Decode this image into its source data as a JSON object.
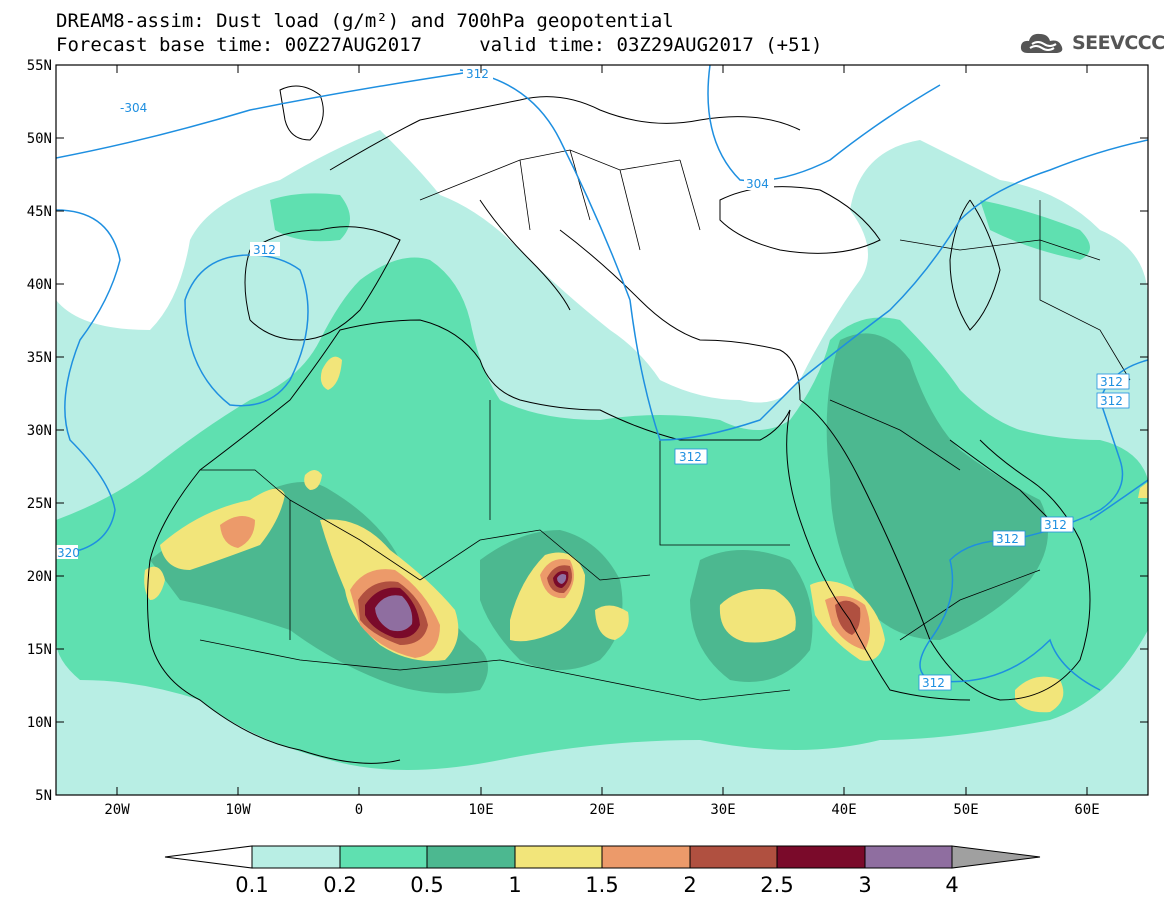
{
  "title": {
    "line1": "DREAM8-assim: Dust load (g/m²) and 700hPa geopotential",
    "line2": "Forecast base time: 00Z27AUG2017     valid time: 03Z29AUG2017 (+51)"
  },
  "logo": {
    "text": "SEEVCCC",
    "icon": "cloud-icon"
  },
  "map": {
    "lon_range": [
      -25,
      65
    ],
    "lat_range": [
      5,
      55
    ],
    "lat_ticks": [
      "55N",
      "50N",
      "45N",
      "40N",
      "35N",
      "30N",
      "25N",
      "20N",
      "15N",
      "10N",
      "5N"
    ],
    "lon_ticks": [
      "20W",
      "10W",
      "0",
      "10E",
      "20E",
      "30E",
      "40E",
      "50E",
      "60E"
    ],
    "contour_labels": [
      "304",
      "312",
      "304",
      "312",
      "312",
      "312",
      "312",
      "312",
      "312",
      "312",
      "320"
    ]
  },
  "colorbar": {
    "labels": [
      "0.1",
      "0.2",
      "0.5",
      "1",
      "1.5",
      "2",
      "2.5",
      "3",
      "4"
    ],
    "colors": [
      "#b8eee4",
      "#5fe0b0",
      "#4cb890",
      "#f2e57a",
      "#ec9a6a",
      "#b05040",
      "#7a0a2a",
      "#8f6ea0",
      "#a0a0a0"
    ]
  },
  "colors": {
    "c_01": "#b8eee4",
    "c_02": "#5fe0b0",
    "c_05": "#4cb890",
    "c_1": "#f2e57a",
    "c_15": "#ec9a6a",
    "c_2": "#b05040",
    "c_25": "#7a0a2a",
    "c_3": "#8f6ea0",
    "contour": "#1e8fe0"
  }
}
